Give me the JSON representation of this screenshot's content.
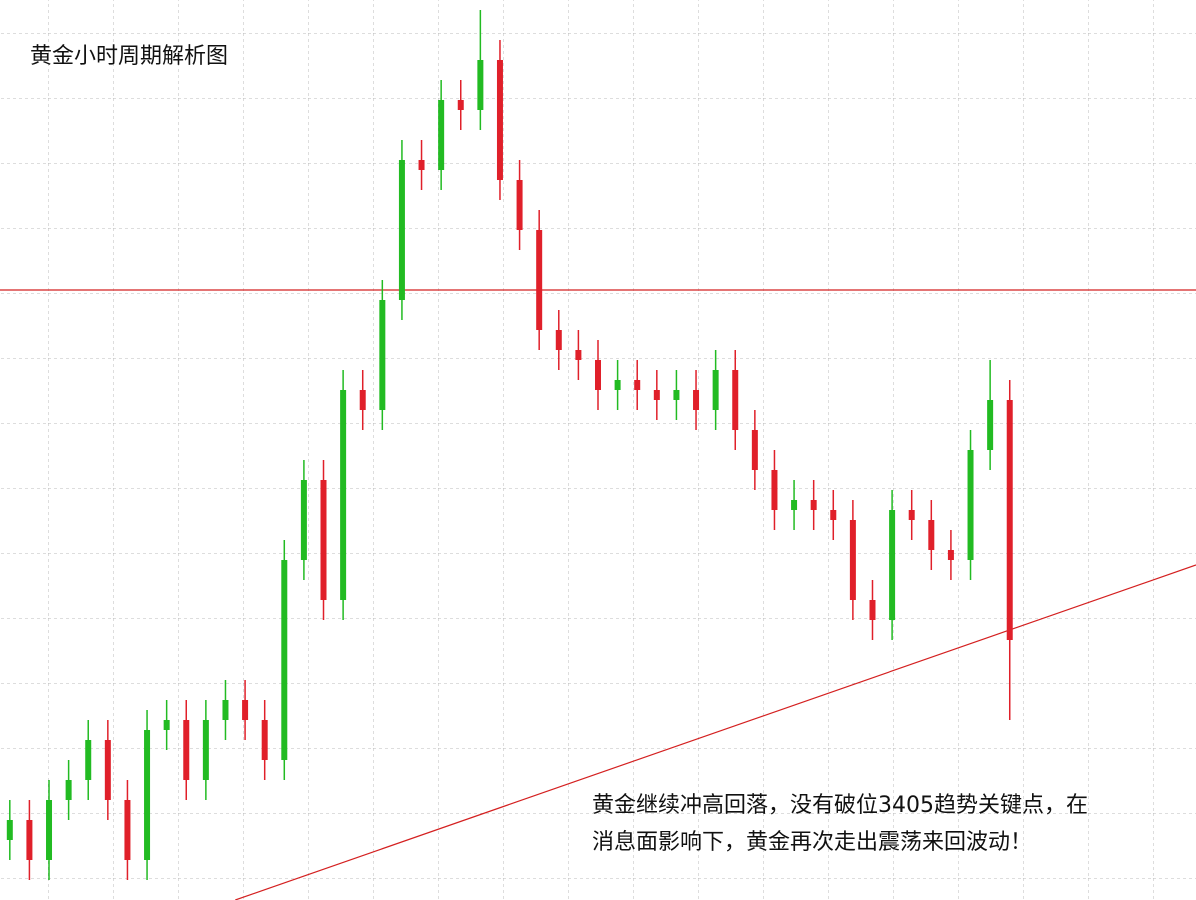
{
  "chart_data": {
    "type": "candlestick",
    "title": "黄金小时周期解析图",
    "annotation": [
      "黄金继续冲高回落，没有破位3405趋势关键点，在",
      "消息面影响下，黄金再次走出震荡来回波动！"
    ],
    "xlim": [
      -0.5,
      60.5
    ],
    "ylim": [
      0,
      900
    ],
    "up_color": "#22bb22",
    "down_color": "#e0202a",
    "open": [
      60,
      80,
      40,
      100,
      120,
      160,
      100,
      40,
      170,
      180,
      120,
      180,
      200,
      180,
      140,
      340,
      420,
      300,
      510,
      490,
      600,
      740,
      730,
      800,
      790,
      840,
      720,
      670,
      570,
      550,
      540,
      510,
      520,
      510,
      500,
      510,
      490,
      530,
      470,
      430,
      390,
      400,
      390,
      380,
      300,
      280,
      390,
      380,
      350,
      340,
      450,
      500
    ],
    "high": [
      100,
      100,
      120,
      140,
      180,
      180,
      120,
      190,
      200,
      200,
      200,
      220,
      220,
      200,
      360,
      440,
      440,
      530,
      530,
      620,
      760,
      760,
      820,
      820,
      890,
      860,
      740,
      690,
      590,
      570,
      560,
      540,
      540,
      530,
      530,
      530,
      550,
      550,
      490,
      450,
      420,
      420,
      410,
      400,
      320,
      410,
      410,
      400,
      370,
      470,
      540,
      520
    ],
    "low": [
      40,
      20,
      20,
      80,
      100,
      80,
      20,
      20,
      150,
      100,
      100,
      160,
      160,
      120,
      120,
      320,
      280,
      280,
      470,
      470,
      580,
      710,
      710,
      770,
      770,
      700,
      650,
      550,
      530,
      520,
      490,
      490,
      490,
      480,
      480,
      470,
      470,
      450,
      410,
      370,
      370,
      370,
      360,
      280,
      260,
      260,
      360,
      330,
      320,
      320,
      430,
      180
    ],
    "close": [
      80,
      40,
      100,
      120,
      160,
      100,
      40,
      170,
      180,
      120,
      180,
      200,
      180,
      140,
      340,
      420,
      300,
      510,
      490,
      600,
      740,
      730,
      800,
      790,
      840,
      720,
      670,
      570,
      550,
      540,
      510,
      520,
      510,
      500,
      510,
      490,
      530,
      470,
      430,
      390,
      400,
      390,
      380,
      300,
      280,
      390,
      380,
      350,
      340,
      450,
      500,
      260
    ],
    "hline": {
      "value": 610,
      "color": "#d42020"
    },
    "trendline": {
      "x": [
        11.5,
        60.5
      ],
      "values": [
        0,
        335
      ],
      "color": "#d42020"
    }
  }
}
